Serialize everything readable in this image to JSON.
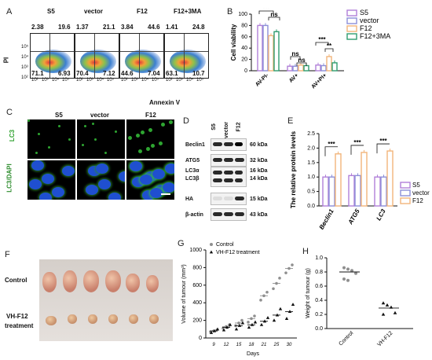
{
  "panels": {
    "A": "A",
    "B": "B",
    "C": "C",
    "D": "D",
    "E": "E",
    "F": "F",
    "G": "G",
    "H": "H"
  },
  "panelA": {
    "ylabel": "PI",
    "xlabel": "Annexin V",
    "plots": [
      {
        "name": "S5",
        "q": [
          "2.38",
          "19.6",
          "71.1",
          "6.93"
        ]
      },
      {
        "name": "vector",
        "q": [
          "1.37",
          "21.1",
          "70.4",
          "7.12"
        ]
      },
      {
        "name": "F12",
        "q": [
          "3.84",
          "44.6",
          "44.6",
          "7.04"
        ]
      },
      {
        "name": "F12+3MA",
        "q": [
          "1.41",
          "24.8",
          "63.1",
          "10.7"
        ]
      }
    ],
    "axis_ticks": [
      "10²",
      "10³",
      "10⁴",
      "10⁵"
    ]
  },
  "panelC": {
    "columns": [
      "S5",
      "vector",
      "F12"
    ],
    "rows": [
      "LC3",
      "LC3/DAPI"
    ]
  },
  "panelD": {
    "columns": [
      "S5",
      "vector",
      "F12"
    ],
    "rows": [
      {
        "label": "Beclin1",
        "kda": "60 kDa"
      },
      {
        "label": "ATG5",
        "kda": "32 kDa"
      },
      {
        "label": "LC3α",
        "kda": "16 kDa"
      },
      {
        "label": "LC3β",
        "kda": "14 kDa"
      },
      {
        "label": "HA",
        "kda": "15 kDa"
      },
      {
        "label": "β-actin",
        "kda": "43 kDa"
      }
    ]
  },
  "panelF": {
    "rows": [
      "Control",
      "VH-F12",
      "treatment"
    ]
  },
  "colors": {
    "S5": "#b07fd8",
    "vector": "#8c8fd8",
    "F12": "#f2b57a",
    "F12+3MA": "#2f9c6f"
  },
  "chart_data": [
    {
      "id": "B",
      "type": "bar",
      "ylabel": "Cell viability",
      "ylim": [
        0,
        100
      ],
      "yticks": [
        "0",
        "20",
        "40",
        "60",
        "80",
        "100"
      ],
      "categories": [
        "AV-PI-",
        "AV+",
        "AV+PI+"
      ],
      "series": [
        {
          "name": "S5",
          "values": [
            80,
            8,
            10
          ]
        },
        {
          "name": "vector",
          "values": [
            80,
            8,
            9
          ]
        },
        {
          "name": "F12",
          "values": [
            62,
            10,
            25
          ]
        },
        {
          "name": "F12+3MA",
          "values": [
            69,
            9,
            14
          ]
        }
      ],
      "annotations": [
        "***",
        "ns",
        "ns",
        "ns",
        "***",
        "**"
      ],
      "legend": "top-right"
    },
    {
      "id": "E",
      "type": "bar",
      "ylabel": "The relative protein levels",
      "ylim": [
        0,
        2.5
      ],
      "yticks": [
        "0.0",
        "0.5",
        "1.0",
        "1.5",
        "2.0",
        "2.5"
      ],
      "categories": [
        "Beclin1",
        "ATG5",
        "LC3"
      ],
      "series": [
        {
          "name": "S5",
          "values": [
            1.0,
            1.05,
            1.0
          ]
        },
        {
          "name": "vector",
          "values": [
            1.0,
            1.05,
            1.0
          ]
        },
        {
          "name": "F12",
          "values": [
            1.8,
            1.85,
            1.9
          ]
        }
      ],
      "annotations": [
        "***",
        "***",
        "***"
      ],
      "legend": "right"
    },
    {
      "id": "G",
      "type": "scatter",
      "xlabel": "Days",
      "ylabel": "Volume of tumour (mm³)",
      "ylim": [
        0,
        1000
      ],
      "yticks": [
        "0",
        "200",
        "400",
        "600",
        "800",
        "1000"
      ],
      "categories": [
        "9",
        "12",
        "15",
        "18",
        "21",
        "25",
        "30"
      ],
      "series": [
        {
          "name": "Control",
          "marker": "circle",
          "values": [
            [
              70,
              80,
              90
            ],
            [
              110,
              130,
              150
            ],
            [
              140,
              170,
              200
            ],
            [
              180,
              220,
              250
            ],
            [
              430,
              480,
              520
            ],
            [
              560,
              620,
              680
            ],
            [
              740,
              790,
              830
            ]
          ]
        },
        {
          "name": "VH-F12 treatment",
          "marker": "triangle",
          "values": [
            [
              60,
              80,
              100
            ],
            [
              90,
              120,
              150
            ],
            [
              100,
              140,
              170
            ],
            [
              120,
              150,
              180
            ],
            [
              150,
              190,
              230
            ],
            [
              200,
              260,
              330
            ],
            [
              220,
              300,
              380
            ]
          ]
        }
      ],
      "means": {
        "Control": [
          80,
          130,
          170,
          220,
          480,
          620,
          790
        ],
        "VH-F12 treatment": [
          80,
          120,
          140,
          150,
          190,
          260,
          300
        ]
      }
    },
    {
      "id": "H",
      "type": "scatter",
      "ylabel": "Weight of tumour (g)",
      "ylim": [
        0,
        1.0
      ],
      "yticks": [
        "0.0",
        "0.2",
        "0.4",
        "0.6",
        "0.8",
        "1.0"
      ],
      "categories": [
        "Control",
        "VH-F12"
      ],
      "series": [
        {
          "name": "Control",
          "marker": "circle",
          "values": [
            0.86,
            0.84,
            0.82,
            0.78,
            0.7,
            0.68
          ]
        },
        {
          "name": "VH-F12",
          "marker": "triangle",
          "values": [
            0.36,
            0.33,
            0.3,
            0.22,
            0.2
          ]
        }
      ],
      "means": [
        0.8,
        0.29
      ]
    }
  ]
}
